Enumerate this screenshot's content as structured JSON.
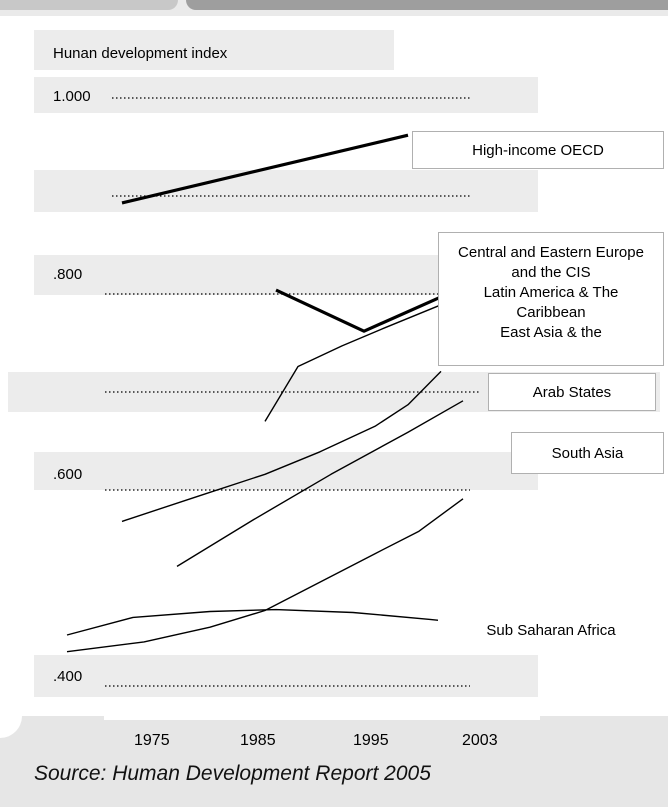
{
  "chart_data": {
    "type": "line",
    "ylabel": "Hunan development index",
    "y_ticks": [
      "1.000",
      ".800",
      ".600",
      ".400"
    ],
    "x_ticks": [
      "1975",
      "1985",
      "1995",
      "2003"
    ],
    "ylim": [
      0.4,
      1.0
    ],
    "source": "Source: Human Development Report 2005",
    "series": [
      {
        "name": "High-income OECD",
        "points": [
          [
            1972,
            0.893
          ],
          [
            1998,
            0.962
          ]
        ]
      },
      {
        "name": "Central and Eastern Europe and the CIS",
        "points": [
          [
            1986,
            0.804
          ],
          [
            1994,
            0.762
          ],
          [
            2001,
            0.797
          ]
        ]
      },
      {
        "name": "Latin America & The Caribbean",
        "points": [
          [
            1985,
            0.67
          ],
          [
            1988,
            0.726
          ],
          [
            1992,
            0.747
          ],
          [
            1996,
            0.766
          ],
          [
            2001,
            0.789
          ]
        ]
      },
      {
        "name": "East Asia & the",
        "points": [
          [
            1972,
            0.568
          ],
          [
            1979,
            0.594
          ],
          [
            1985,
            0.616
          ],
          [
            1990,
            0.639
          ],
          [
            1995,
            0.665
          ],
          [
            1998,
            0.687
          ],
          [
            2001,
            0.721
          ]
        ]
      },
      {
        "name": "Arab States",
        "points": [
          [
            1977,
            0.522
          ],
          [
            1984,
            0.57
          ],
          [
            1991,
            0.616
          ],
          [
            1998,
            0.659
          ],
          [
            2003,
            0.691
          ]
        ]
      },
      {
        "name": "South Asia",
        "points": [
          [
            1967,
            0.435
          ],
          [
            1974,
            0.445
          ],
          [
            1980,
            0.46
          ],
          [
            1985,
            0.477
          ],
          [
            1990,
            0.506
          ],
          [
            1995,
            0.535
          ],
          [
            1999,
            0.558
          ],
          [
            2003,
            0.591
          ]
        ]
      },
      {
        "name": "Sub Saharan Africa",
        "points": [
          [
            1967,
            0.452
          ],
          [
            1973,
            0.47
          ],
          [
            1980,
            0.476
          ],
          [
            1986,
            0.478
          ],
          [
            1993,
            0.475
          ],
          [
            2000,
            0.468
          ],
          [
            2006,
            0.461
          ]
        ]
      }
    ],
    "colors": {
      "lines": "#000000",
      "bands": "#ececec",
      "background": "#ffffff"
    }
  }
}
